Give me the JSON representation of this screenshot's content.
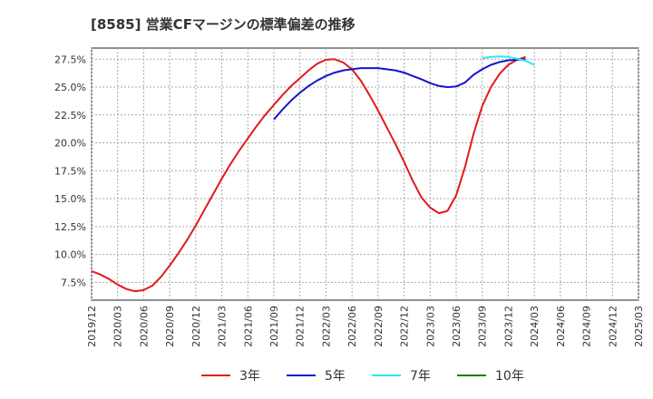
{
  "chart_data": {
    "type": "line",
    "title": "[8585]  営業CFマージンの標準偏差の推移",
    "xlabel": "",
    "ylabel": "",
    "x_ticks": [
      "2019/12",
      "2020/03",
      "2020/06",
      "2020/09",
      "2020/12",
      "2021/03",
      "2021/06",
      "2021/09",
      "2021/12",
      "2022/03",
      "2022/06",
      "2022/09",
      "2022/12",
      "2023/03",
      "2023/06",
      "2023/09",
      "2023/12",
      "2024/03",
      "2024/06",
      "2024/09",
      "2024/12",
      "2025/03"
    ],
    "y_ticks": [
      "7.5%",
      "10.0%",
      "12.5%",
      "15.0%",
      "17.5%",
      "20.0%",
      "22.5%",
      "25.0%",
      "27.5%"
    ],
    "xlim": [
      "2019/12",
      "2025/03"
    ],
    "ylim": [
      5.9,
      28.5
    ],
    "grid": true,
    "legend_position": "bottom",
    "colors": {
      "3年": "#e31a1c",
      "5年": "#1515cc",
      "7年": "#2ee8f0",
      "10年": "#1a7a1a"
    },
    "series": [
      {
        "name": "3年",
        "points": [
          [
            "2019/12",
            8.5
          ],
          [
            "2020/01",
            8.2
          ],
          [
            "2020/02",
            7.8
          ],
          [
            "2020/03",
            7.3
          ],
          [
            "2020/04",
            6.9
          ],
          [
            "2020/05",
            6.7
          ],
          [
            "2020/06",
            6.8
          ],
          [
            "2020/07",
            7.2
          ],
          [
            "2020/08",
            8.0
          ],
          [
            "2020/09",
            9.0
          ],
          [
            "2020/10",
            10.1
          ],
          [
            "2020/11",
            11.3
          ],
          [
            "2020/12",
            12.6
          ],
          [
            "2021/01",
            14.0
          ],
          [
            "2021/02",
            15.4
          ],
          [
            "2021/03",
            16.8
          ],
          [
            "2021/04",
            18.1
          ],
          [
            "2021/05",
            19.3
          ],
          [
            "2021/06",
            20.4
          ],
          [
            "2021/07",
            21.5
          ],
          [
            "2021/08",
            22.5
          ],
          [
            "2021/09",
            23.4
          ],
          [
            "2021/10",
            24.3
          ],
          [
            "2021/11",
            25.1
          ],
          [
            "2021/12",
            25.8
          ],
          [
            "2022/01",
            26.5
          ],
          [
            "2022/02",
            27.1
          ],
          [
            "2022/03",
            27.45
          ],
          [
            "2022/04",
            27.5
          ],
          [
            "2022/05",
            27.2
          ],
          [
            "2022/06",
            26.6
          ],
          [
            "2022/07",
            25.6
          ],
          [
            "2022/08",
            24.3
          ],
          [
            "2022/09",
            22.9
          ],
          [
            "2022/10",
            21.4
          ],
          [
            "2022/11",
            19.9
          ],
          [
            "2022/12",
            18.3
          ],
          [
            "2023/01",
            16.6
          ],
          [
            "2023/02",
            15.1
          ],
          [
            "2023/03",
            14.2
          ],
          [
            "2023/04",
            13.7
          ],
          [
            "2023/05",
            13.9
          ],
          [
            "2023/06",
            15.3
          ],
          [
            "2023/07",
            17.8
          ],
          [
            "2023/08",
            20.8
          ],
          [
            "2023/09",
            23.3
          ],
          [
            "2023/10",
            25.0
          ],
          [
            "2023/11",
            26.2
          ],
          [
            "2023/12",
            27.0
          ],
          [
            "2024/01",
            27.45
          ],
          [
            "2024/02",
            27.7
          ]
        ]
      },
      {
        "name": "5年",
        "points": [
          [
            "2021/09",
            22.1
          ],
          [
            "2021/10",
            23.0
          ],
          [
            "2021/11",
            23.8
          ],
          [
            "2021/12",
            24.5
          ],
          [
            "2022/01",
            25.1
          ],
          [
            "2022/02",
            25.6
          ],
          [
            "2022/03",
            26.0
          ],
          [
            "2022/04",
            26.3
          ],
          [
            "2022/05",
            26.5
          ],
          [
            "2022/06",
            26.6
          ],
          [
            "2022/07",
            26.7
          ],
          [
            "2022/08",
            26.7
          ],
          [
            "2022/09",
            26.7
          ],
          [
            "2022/10",
            26.6
          ],
          [
            "2022/11",
            26.5
          ],
          [
            "2022/12",
            26.3
          ],
          [
            "2023/01",
            26.0
          ],
          [
            "2023/02",
            25.7
          ],
          [
            "2023/03",
            25.35
          ],
          [
            "2023/04",
            25.1
          ],
          [
            "2023/05",
            25.0
          ],
          [
            "2023/06",
            25.05
          ],
          [
            "2023/07",
            25.4
          ],
          [
            "2023/08",
            26.1
          ],
          [
            "2023/09",
            26.6
          ],
          [
            "2023/10",
            27.0
          ],
          [
            "2023/11",
            27.25
          ],
          [
            "2023/12",
            27.4
          ],
          [
            "2024/01",
            27.45
          ],
          [
            "2024/02",
            27.5
          ]
        ]
      },
      {
        "name": "7年",
        "points": [
          [
            "2023/09",
            27.6
          ],
          [
            "2023/10",
            27.7
          ],
          [
            "2023/11",
            27.75
          ],
          [
            "2023/12",
            27.7
          ],
          [
            "2024/01",
            27.55
          ],
          [
            "2024/02",
            27.35
          ],
          [
            "2024/03",
            27.0
          ]
        ]
      },
      {
        "name": "10年",
        "points": []
      }
    ]
  }
}
